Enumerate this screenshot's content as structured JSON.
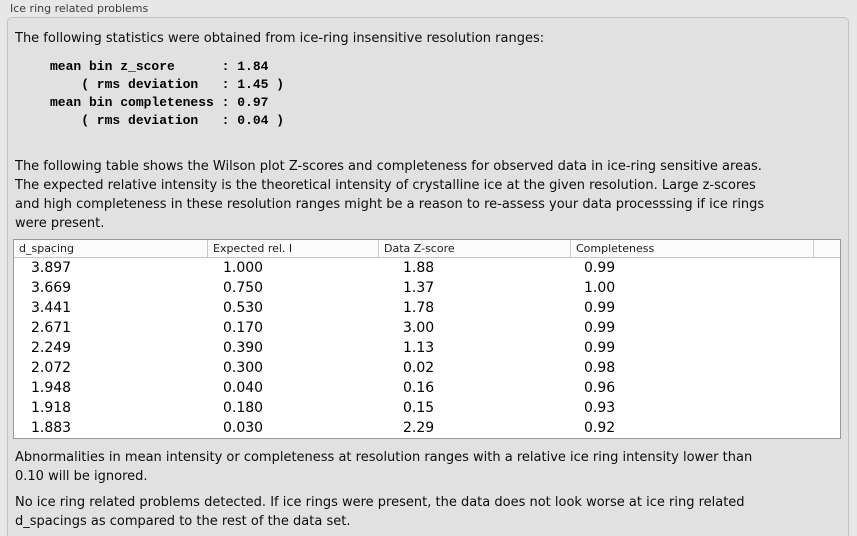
{
  "section": {
    "title": "Ice ring related problems",
    "intro": "The following statistics were obtained from ice-ring insensitive resolution ranges:",
    "stats_block": "mean bin z_score      : 1.84\n    ( rms deviation   : 1.45 )\nmean bin completeness : 0.97\n    ( rms deviation   : 0.04 )",
    "table_description": "The following table shows the Wilson plot Z-scores and completeness for observed data in ice-ring sensitive areas.\nThe expected relative intensity is the theoretical intensity of crystalline ice at the given resolution. Large z-scores\nand high completeness in these resolution ranges might be a reason to re-assess your data processsing if ice rings\nwere present.",
    "note": "Abnormalities in mean intensity or completeness at resolution ranges with a relative ice ring intensity lower than\n0.10 will be ignored.",
    "conclusion": "No ice ring related problems detected. If ice rings were present, the data does not look worse at ice ring related\nd_spacings as compared to the rest of the data set."
  },
  "stats": {
    "mean_bin_z_score": "1.84",
    "z_score_rms_deviation": "1.45",
    "mean_bin_completeness": "0.97",
    "completeness_rms_deviation": "0.04"
  },
  "table": {
    "columns": [
      "d_spacing",
      "Expected rel. I",
      "Data Z-score",
      "Completeness"
    ],
    "rows": [
      [
        "3.897",
        "1.000",
        "1.88",
        "0.99"
      ],
      [
        "3.669",
        "0.750",
        "1.37",
        "1.00"
      ],
      [
        "3.441",
        "0.530",
        "1.78",
        "0.99"
      ],
      [
        "2.671",
        "0.170",
        "3.00",
        "0.99"
      ],
      [
        "2.249",
        "0.390",
        "1.13",
        "0.99"
      ],
      [
        "2.072",
        "0.300",
        "0.02",
        "0.98"
      ],
      [
        "1.948",
        "0.040",
        "0.16",
        "0.96"
      ],
      [
        "1.918",
        "0.180",
        "0.15",
        "0.93"
      ],
      [
        "1.883",
        "0.030",
        "2.29",
        "0.92"
      ]
    ]
  },
  "colors": {
    "panel_background": "#e1e1e1",
    "page_background": "#e7e7e7",
    "table_background": "#ffffff",
    "table_border": "#9a9a9a"
  }
}
